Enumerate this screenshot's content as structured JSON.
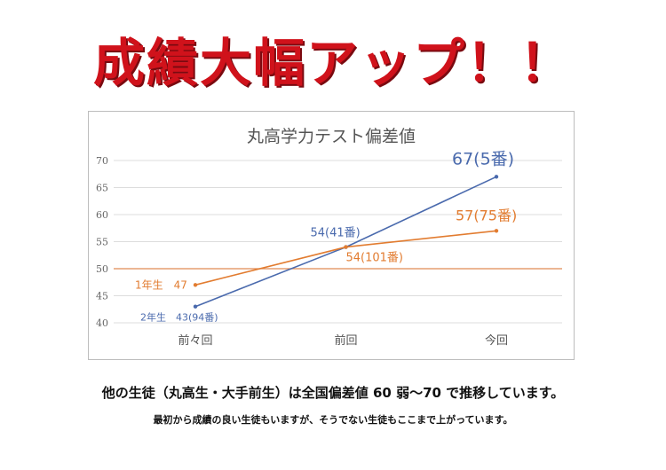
{
  "headline": "成績大幅アップ！！",
  "caption_line1": "他の生徒（丸高生・大手前生）は全国偏差値 60 弱〜70 で推移しています。",
  "caption_line2": "最初から成績の良い生徒もいますが、そうでない生徒もここまで上がっています。",
  "colors": {
    "series_2nen": "#4a6aad",
    "series_1nen": "#e27c30",
    "reference_line": "#e08a55",
    "headline": "#d0121b"
  },
  "chart_data": {
    "type": "line",
    "title": "丸高学力テスト偏差値",
    "categories": [
      "前々回",
      "前回",
      "今回"
    ],
    "ylim": [
      40,
      70
    ],
    "yticks": [
      "40",
      "45",
      "50",
      "55",
      "60",
      "65",
      "70"
    ],
    "grid": true,
    "reference_line": 50,
    "series": [
      {
        "name": "2年生",
        "values": [
          43,
          54,
          67
        ],
        "labels": [
          "2年生　43(94番)",
          "54(41番)",
          "67(5番)"
        ],
        "color": "#4a6aad"
      },
      {
        "name": "1年生",
        "values": [
          47,
          54,
          57
        ],
        "labels": [
          "1年生　47",
          "54(101番)",
          "57(75番)"
        ],
        "color": "#e27c30"
      }
    ]
  }
}
